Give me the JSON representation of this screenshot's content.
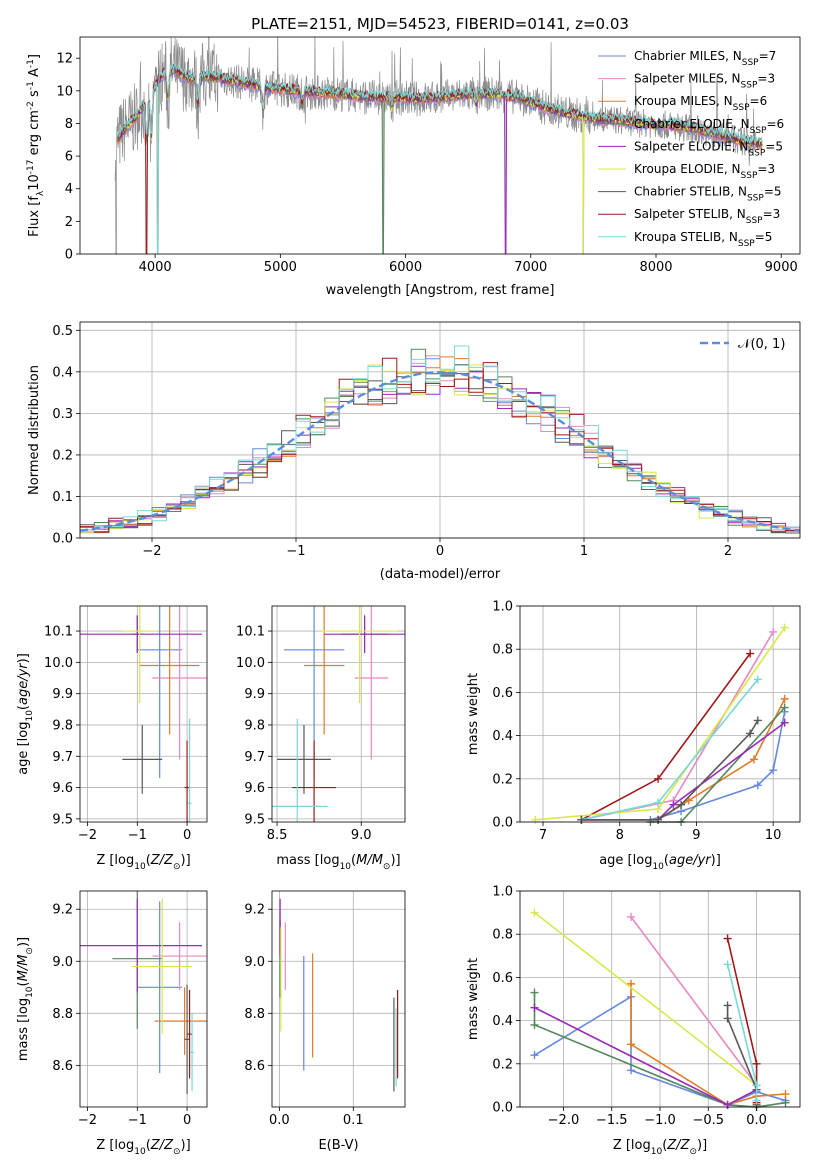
{
  "title": "PLATE=2151, MJD=54523, FIBERID=0141, z=0.03",
  "palette": {
    "chabrier_miles": "#6688dd",
    "salpeter_miles": "#e888c4",
    "kroupa_miles": "#e07c28",
    "chabrier_elodie": "#54885a",
    "salpeter_elodie": "#9a2ab8",
    "kroupa_elodie": "#d8e84a",
    "chabrier_stelib": "#585858",
    "salpeter_stelib": "#a01818",
    "kroupa_stelib": "#78d8d8",
    "observed": "#8c8c8c",
    "gauss": "#5b8ed8"
  },
  "legend_spectrum": [
    {
      "base": "Chabrier MILES, N",
      "sub": "SSP",
      "tail": "=7",
      "color_key": "chabrier_miles"
    },
    {
      "base": "Salpeter MILES, N",
      "sub": "SSP",
      "tail": "=3",
      "color_key": "salpeter_miles"
    },
    {
      "base": "Kroupa MILES, N",
      "sub": "SSP",
      "tail": "=6",
      "color_key": "kroupa_miles"
    },
    {
      "base": "Chabrier ELODIE, N",
      "sub": "SSP",
      "tail": "=6",
      "color_key": "chabrier_elodie"
    },
    {
      "base": "Salpeter ELODIE, N",
      "sub": "SSP",
      "tail": "=5",
      "color_key": "salpeter_elodie"
    },
    {
      "base": "Kroupa ELODIE, N",
      "sub": "SSP",
      "tail": "=3",
      "color_key": "kroupa_elodie"
    },
    {
      "base": "Chabrier STELIB, N",
      "sub": "SSP",
      "tail": "=5",
      "color_key": "chabrier_stelib"
    },
    {
      "base": "Salpeter STELIB, N",
      "sub": "SSP",
      "tail": "=3",
      "color_key": "salpeter_stelib"
    },
    {
      "base": "Kroupa STELIB, N",
      "sub": "SSP",
      "tail": "=5",
      "color_key": "kroupa_stelib"
    }
  ],
  "legend_hist": {
    "label": "𝒩(0, 1)"
  },
  "chart_data": [
    {
      "id": "spectrum",
      "type": "line",
      "xlabel": "wavelength [Angstrom, rest frame]",
      "ylabel_parts": [
        "Flux [f",
        "λ",
        "10",
        "-17",
        " erg cm",
        "-2",
        " s",
        "-1",
        " A",
        "-1",
        "]"
      ],
      "xlim": [
        3400,
        9150
      ],
      "ylim": [
        0,
        13.3
      ],
      "xticks": [
        4000,
        5000,
        6000,
        7000,
        8000,
        9000
      ],
      "yticks": [
        0,
        2,
        4,
        6,
        8,
        10,
        12
      ],
      "continuum": [
        [
          3700,
          7.0
        ],
        [
          3750,
          7.6
        ],
        [
          3800,
          8.0
        ],
        [
          3850,
          8.4
        ],
        [
          3900,
          9.0
        ],
        [
          3950,
          9.6
        ],
        [
          4000,
          10.3
        ],
        [
          4050,
          10.9
        ],
        [
          4100,
          11.2
        ],
        [
          4150,
          11.3
        ],
        [
          4200,
          11.0
        ],
        [
          4300,
          10.7
        ],
        [
          4400,
          10.9
        ],
        [
          4500,
          10.8
        ],
        [
          4700,
          10.5
        ],
        [
          4900,
          10.2
        ],
        [
          5100,
          10.0
        ],
        [
          5300,
          9.9
        ],
        [
          5500,
          9.8
        ],
        [
          5700,
          9.6
        ],
        [
          5900,
          9.6
        ],
        [
          6100,
          9.5
        ],
        [
          6300,
          9.6
        ],
        [
          6500,
          9.8
        ],
        [
          6700,
          9.8
        ],
        [
          6900,
          9.6
        ],
        [
          7100,
          9.0
        ],
        [
          7300,
          8.6
        ],
        [
          7500,
          8.3
        ],
        [
          7700,
          8.2
        ],
        [
          7900,
          8.0
        ],
        [
          8100,
          7.9
        ],
        [
          8300,
          7.7
        ],
        [
          8500,
          7.3
        ],
        [
          8700,
          6.9
        ],
        [
          8850,
          6.7
        ]
      ],
      "observed_range": [
        3680,
        8800
      ],
      "models_end": 8850,
      "absorption_lines": [
        [
          3934,
          3.0
        ],
        [
          3969,
          3.5
        ],
        [
          4102,
          2.0
        ],
        [
          4340,
          2.0
        ],
        [
          4861,
          1.6
        ],
        [
          5175,
          1.0
        ],
        [
          5890,
          0.9
        ],
        [
          6563,
          0.7
        ]
      ],
      "dropouts": [
        [
          3690,
          0
        ],
        [
          3930,
          0
        ],
        [
          4020,
          0
        ],
        [
          5820,
          0
        ],
        [
          6800,
          0
        ],
        [
          7420,
          0
        ]
      ]
    },
    {
      "id": "residual_histogram",
      "type": "line",
      "xlabel": "(data-model)/error",
      "ylabel": "Normed distribution",
      "xlim": [
        -2.5,
        2.5
      ],
      "ylim": [
        0,
        0.52
      ],
      "xticks": [
        -2,
        -1,
        0,
        1,
        2
      ],
      "yticks": [
        0.0,
        0.1,
        0.2,
        0.3,
        0.4,
        0.5
      ],
      "bin_width": 0.1,
      "gaussian": {
        "mean": 0,
        "sigma": 1
      }
    },
    {
      "id": "age_vs_Z",
      "type": "scatter",
      "xlabel": "Z [log10(Z/Z⊙)]",
      "ylabel": "age [log10(age/yr)]",
      "xlim": [
        -2.15,
        0.4
      ],
      "ylim": [
        9.49,
        10.18
      ],
      "xticks": [
        -2,
        -1,
        0
      ],
      "yticks": [
        9.5,
        9.6,
        9.7,
        9.8,
        9.9,
        10.0,
        10.1
      ],
      "points": [
        {
          "s": "chabrier_miles",
          "x": -0.55,
          "xe": 0.45,
          "y": 10.04,
          "ye": 0.41
        },
        {
          "s": "salpeter_miles",
          "x": -0.15,
          "xe": 0.55,
          "y": 9.95,
          "ye": 0.26
        },
        {
          "s": "kroupa_miles",
          "x": -0.35,
          "xe": 0.6,
          "y": 9.99,
          "ye": 0.22
        },
        {
          "s": "chabrier_elodie",
          "x": -1.0,
          "xe": 0.12,
          "y": 10.09,
          "ye": 0.06
        },
        {
          "s": "salpeter_elodie",
          "x": -1.0,
          "xe": 1.3,
          "y": 10.09,
          "ye": 0.06
        },
        {
          "s": "kroupa_elodie",
          "x": -0.95,
          "xe": 0.35,
          "y": 10.1,
          "ye": 0.23
        },
        {
          "s": "chabrier_stelib",
          "x": -0.9,
          "xe": 0.4,
          "y": 9.69,
          "ye": 0.11
        },
        {
          "s": "salpeter_stelib",
          "x": 0.0,
          "xe": 0.05,
          "y": 9.6,
          "ye": 0.15
        },
        {
          "s": "kroupa_stelib",
          "x": 0.05,
          "xe": 0.04,
          "y": 9.55,
          "ye": 0.27
        }
      ]
    },
    {
      "id": "age_vs_mass",
      "type": "scatter",
      "xlabel": "mass [log10(M/M⊙)]",
      "ylabel": "",
      "xlim": [
        8.47,
        9.26
      ],
      "ylim": [
        9.49,
        10.18
      ],
      "xticks": [
        8.5,
        9.0
      ],
      "yticks": [
        9.5,
        9.6,
        9.7,
        9.8,
        9.9,
        10.0,
        10.1
      ],
      "points": [
        {
          "s": "chabrier_miles",
          "x": 8.72,
          "xe": 0.18,
          "y": 10.04,
          "ye": 0.41
        },
        {
          "s": "salpeter_miles",
          "x": 9.06,
          "xe": 0.1,
          "y": 9.95,
          "ye": 0.26
        },
        {
          "s": "kroupa_miles",
          "x": 8.78,
          "xe": 0.12,
          "y": 9.99,
          "ye": 0.22
        },
        {
          "s": "chabrier_elodie",
          "x": 9.02,
          "xe": 0.14,
          "y": 10.09,
          "ye": 0.06
        },
        {
          "s": "salpeter_elodie",
          "x": 9.02,
          "xe": 0.24,
          "y": 10.09,
          "ye": 0.06
        },
        {
          "s": "kroupa_elodie",
          "x": 8.99,
          "xe": 0.23,
          "y": 10.1,
          "ye": 0.23
        },
        {
          "s": "chabrier_stelib",
          "x": 8.66,
          "xe": 0.16,
          "y": 9.69,
          "ye": 0.11
        },
        {
          "s": "salpeter_stelib",
          "x": 8.72,
          "xe": 0.13,
          "y": 9.6,
          "ye": 0.15
        },
        {
          "s": "kroupa_stelib",
          "x": 8.62,
          "xe": 0.18,
          "y": 9.54,
          "ye": 0.28
        }
      ]
    },
    {
      "id": "mass_weight_vs_age",
      "type": "line",
      "xlabel": "age [log10(age/yr)]",
      "ylabel": "mass weight",
      "xlim": [
        6.7,
        10.35
      ],
      "ylim": [
        0,
        1.0
      ],
      "xticks": [
        7,
        8,
        9,
        10
      ],
      "yticks": [
        0.0,
        0.2,
        0.4,
        0.6,
        0.8,
        1.0
      ],
      "series": [
        {
          "s": "salpeter_stelib",
          "x": [
            7.5,
            8.5,
            9.7
          ],
          "y": [
            0.01,
            0.2,
            0.78
          ]
        },
        {
          "s": "salpeter_miles",
          "x": [
            7.5,
            8.7,
            10.0
          ],
          "y": [
            0.01,
            0.1,
            0.88
          ]
        },
        {
          "s": "kroupa_elodie",
          "x": [
            6.9,
            8.5,
            10.15
          ],
          "y": [
            0.01,
            0.06,
            0.9
          ]
        },
        {
          "s": "kroupa_stelib",
          "x": [
            7.5,
            8.5,
            9.8
          ],
          "y": [
            0.01,
            0.09,
            0.66
          ]
        },
        {
          "s": "chabrier_miles",
          "x": [
            7.5,
            8.4,
            8.8,
            9.8,
            10.0,
            10.15
          ],
          "y": [
            0.01,
            0.01,
            0.05,
            0.17,
            0.24,
            0.51
          ]
        },
        {
          "s": "kroupa_miles",
          "x": [
            7.5,
            8.5,
            8.9,
            9.75,
            10.15
          ],
          "y": [
            0.01,
            0.01,
            0.1,
            0.29,
            0.57
          ]
        },
        {
          "s": "chabrier_elodie",
          "x": [
            8.4,
            8.8,
            10.15
          ],
          "y": [
            0.0,
            0.0,
            0.53
          ]
        },
        {
          "s": "salpeter_elodie",
          "x": [
            7.5,
            8.5,
            8.7,
            10.15
          ],
          "y": [
            0.01,
            0.01,
            0.08,
            0.46
          ]
        },
        {
          "s": "chabrier_stelib",
          "x": [
            7.5,
            8.5,
            8.8,
            9.7,
            9.8
          ],
          "y": [
            0.01,
            0.01,
            0.08,
            0.41,
            0.47
          ]
        }
      ]
    },
    {
      "id": "mass_vs_Z",
      "type": "scatter",
      "xlabel": "Z [log10(Z/Z⊙)]",
      "ylabel": "mass [log10(M/M⊙)]",
      "xlim": [
        -2.15,
        0.4
      ],
      "ylim": [
        8.44,
        9.27
      ],
      "xticks": [
        -2,
        -1,
        0
      ],
      "yticks": [
        8.6,
        8.8,
        9.0,
        9.2
      ],
      "points": [
        {
          "s": "chabrier_miles",
          "x": -0.55,
          "xe": 0.45,
          "y": 8.9,
          "ye": 0.33
        },
        {
          "s": "salpeter_miles",
          "x": -0.15,
          "xe": 0.55,
          "y": 9.02,
          "ye": 0.13
        },
        {
          "s": "kroupa_miles",
          "x": -0.05,
          "xe": 0.6,
          "y": 8.77,
          "ye": 0.13
        },
        {
          "s": "chabrier_elodie",
          "x": -1.0,
          "xe": 0.5,
          "y": 9.01,
          "ye": 0.27
        },
        {
          "s": "salpeter_elodie",
          "x": -1.0,
          "xe": 1.3,
          "y": 9.06,
          "ye": 0.18
        },
        {
          "s": "kroupa_elodie",
          "x": -0.5,
          "xe": 0.6,
          "y": 8.98,
          "ye": 0.26
        },
        {
          "s": "chabrier_stelib",
          "x": 0.0,
          "xe": 0.05,
          "y": 8.7,
          "ye": 0.21
        },
        {
          "s": "salpeter_stelib",
          "x": 0.05,
          "xe": 0.05,
          "y": 8.72,
          "ye": 0.17
        },
        {
          "s": "kroupa_stelib",
          "x": 0.1,
          "xe": 0.04,
          "y": 8.65,
          "ye": 0.15
        }
      ]
    },
    {
      "id": "mass_vs_EBV",
      "type": "scatter",
      "xlabel": "E(B-V)",
      "ylabel": "",
      "xlim": [
        -0.01,
        0.17
      ],
      "ylim": [
        8.44,
        9.27
      ],
      "xticks": [
        0.0,
        0.1
      ],
      "yticks": [
        8.6,
        8.8,
        9.0,
        9.2
      ],
      "points": [
        {
          "s": "chabrier_miles",
          "x": 0.033,
          "xe": 0,
          "y": 8.8,
          "ye": 0.22
        },
        {
          "s": "salpeter_miles",
          "x": 0.008,
          "xe": 0,
          "y": 9.02,
          "ye": 0.13
        },
        {
          "s": "kroupa_miles",
          "x": 0.045,
          "xe": 0,
          "y": 8.83,
          "ye": 0.2
        },
        {
          "s": "chabrier_elodie",
          "x": 0.001,
          "xe": 0,
          "y": 9.01,
          "ye": 0.15
        },
        {
          "s": "salpeter_elodie",
          "x": 0.001,
          "xe": 0,
          "y": 9.13,
          "ye": 0.11
        },
        {
          "s": "kroupa_elodie",
          "x": 0.002,
          "xe": 0,
          "y": 8.93,
          "ye": 0.2
        },
        {
          "s": "chabrier_stelib",
          "x": 0.155,
          "xe": 0,
          "y": 8.68,
          "ye": 0.18
        },
        {
          "s": "salpeter_stelib",
          "x": 0.16,
          "xe": 0,
          "y": 8.72,
          "ye": 0.17
        },
        {
          "s": "kroupa_stelib",
          "x": 0.158,
          "xe": 0,
          "y": 8.67,
          "ye": 0.15
        }
      ]
    },
    {
      "id": "mass_weight_vs_Z",
      "type": "line",
      "xlabel": "Z [log10(Z/Z⊙)]",
      "ylabel": "mass weight",
      "xlim": [
        -2.45,
        0.45
      ],
      "ylim": [
        0,
        1.0
      ],
      "xticks": [
        -2.0,
        -1.5,
        -1.0,
        -0.5,
        0.0
      ],
      "yticks": [
        0.0,
        0.2,
        0.4,
        0.6,
        0.8,
        1.0
      ],
      "series": [
        {
          "s": "chabrier_miles",
          "x": [
            -2.3,
            -1.3,
            -1.3,
            -0.3,
            0.0,
            0.3
          ],
          "y": [
            0.24,
            0.51,
            0.17,
            0.01,
            0.07,
            0.03
          ]
        },
        {
          "s": "salpeter_miles",
          "x": [
            -1.3,
            0.0
          ],
          "y": [
            0.88,
            0.1
          ]
        },
        {
          "s": "kroupa_miles",
          "x": [
            -1.3,
            -1.3,
            -0.3,
            0.0,
            0.3
          ],
          "y": [
            0.57,
            0.29,
            0.01,
            0.05,
            0.06
          ]
        },
        {
          "s": "chabrier_elodie",
          "x": [
            -2.3,
            -2.3,
            -0.3,
            0.0,
            0.3
          ],
          "y": [
            0.53,
            0.38,
            0.01,
            0.0,
            0.02
          ]
        },
        {
          "s": "salpeter_elodie",
          "x": [
            -2.3,
            -0.3,
            0.0
          ],
          "y": [
            0.46,
            0.01,
            0.08
          ]
        },
        {
          "s": "kroupa_elodie",
          "x": [
            -2.3,
            0.0
          ],
          "y": [
            0.9,
            0.1
          ]
        },
        {
          "s": "chabrier_stelib",
          "x": [
            -0.3,
            -0.3,
            0.0,
            0.0
          ],
          "y": [
            0.47,
            0.41,
            0.08,
            0.01
          ]
        },
        {
          "s": "salpeter_stelib",
          "x": [
            -0.3,
            0.0,
            0.0
          ],
          "y": [
            0.78,
            0.2,
            0.02
          ]
        },
        {
          "s": "kroupa_stelib",
          "x": [
            -0.3,
            0.0,
            0.0
          ],
          "y": [
            0.66,
            0.1,
            0.03
          ]
        }
      ]
    }
  ]
}
